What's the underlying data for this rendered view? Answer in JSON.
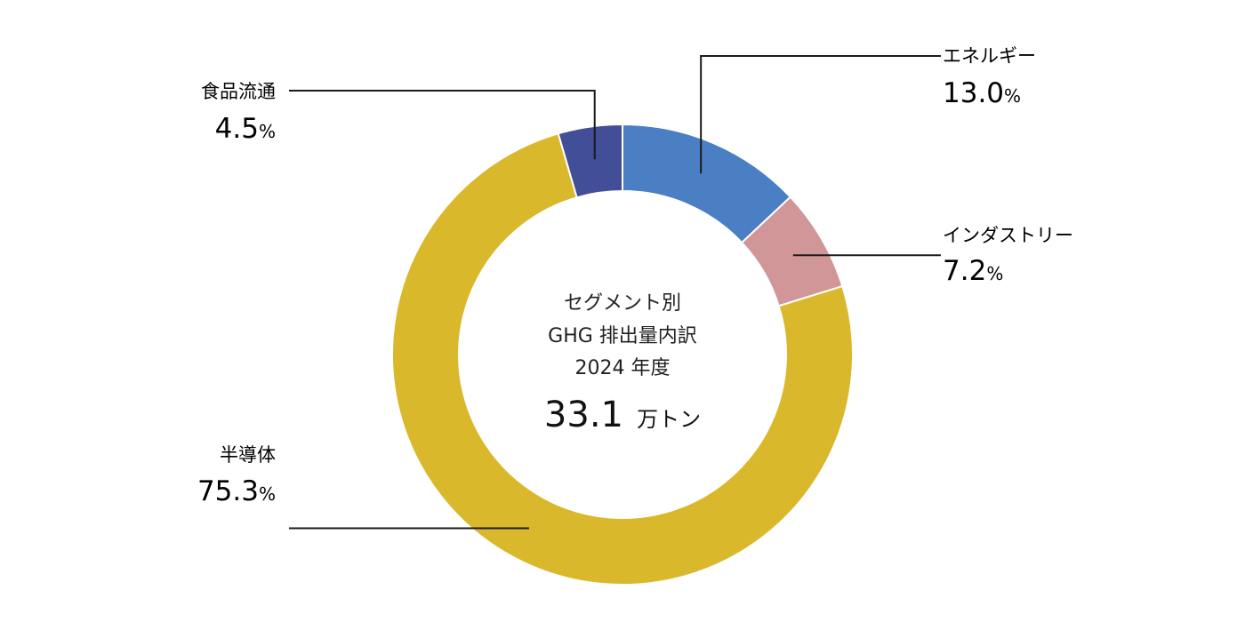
{
  "chart_data": {
    "type": "pie",
    "donut": true,
    "center_text": {
      "line1": "セグメント別",
      "line2": "GHG 排出量内訳",
      "line3": "2024 年度",
      "total_value": "33.1",
      "total_unit": "万トン"
    },
    "percent_symbol": "%",
    "slices": [
      {
        "name": "エネルギー",
        "value": 13.0,
        "value_label": "13.0",
        "color": "#4a7fc4"
      },
      {
        "name": "インダストリー",
        "value": 7.2,
        "value_label": "7.2",
        "color": "#d09698"
      },
      {
        "name": "半導体",
        "value": 75.3,
        "value_label": "75.3",
        "color": "#d9b82b"
      },
      {
        "name": "食品流通",
        "value": 4.5,
        "value_label": "4.5",
        "color": "#434e98"
      }
    ]
  }
}
